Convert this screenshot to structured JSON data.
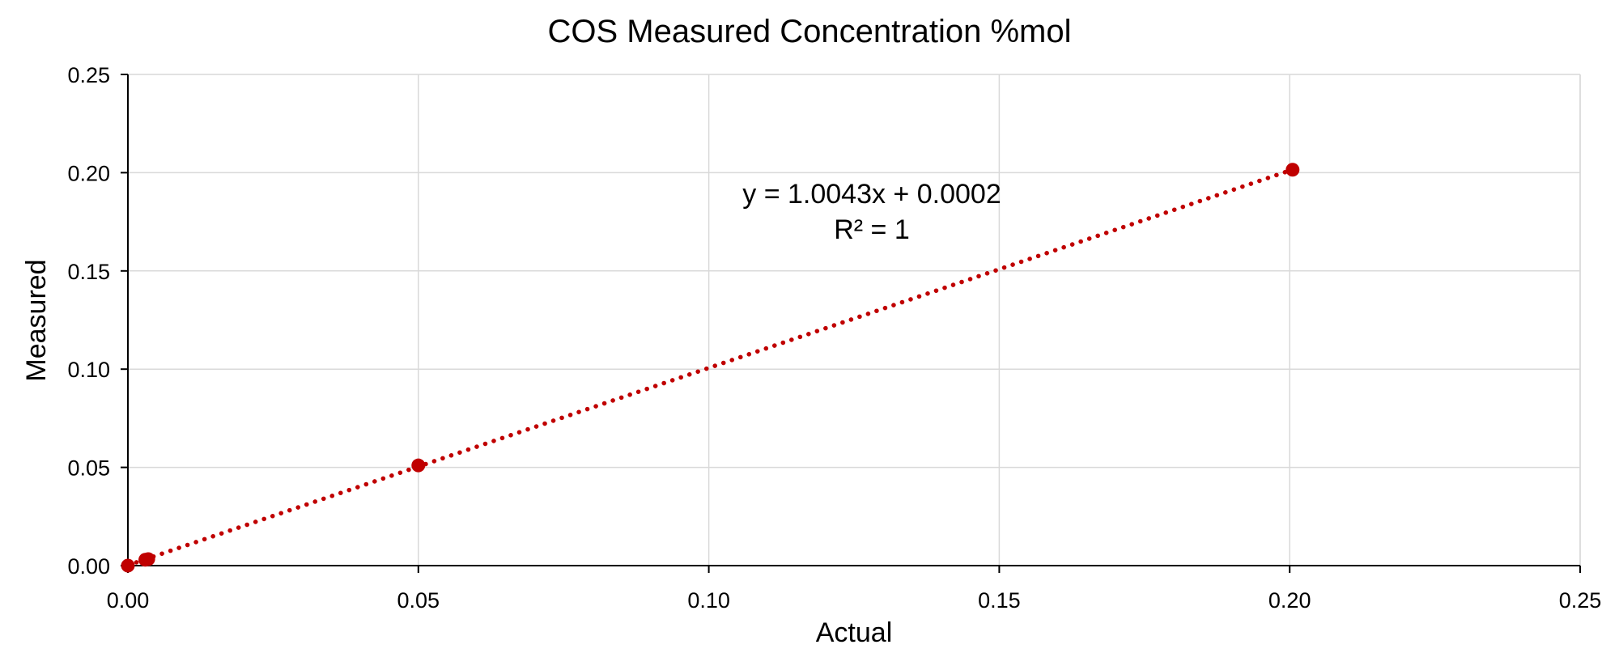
{
  "chart_data": {
    "type": "scatter",
    "title": "COS Measured Concentration %mol",
    "xlabel": "Actual",
    "ylabel": "Measured",
    "xlim": [
      0,
      0.25
    ],
    "ylim": [
      0,
      0.25
    ],
    "x_ticks": [
      "0.00",
      "0.05",
      "0.10",
      "0.15",
      "0.20",
      "0.25"
    ],
    "y_ticks": [
      "0.00",
      "0.05",
      "0.10",
      "0.15",
      "0.20",
      "0.25"
    ],
    "grid": true,
    "series": [
      {
        "points": [
          {
            "x": 0.0,
            "y": 0.0
          },
          {
            "x": 0.003,
            "y": 0.003
          },
          {
            "x": 0.0035,
            "y": 0.0033
          },
          {
            "x": 0.05,
            "y": 0.051
          },
          {
            "x": 0.2005,
            "y": 0.2015
          }
        ],
        "color": "#c00000"
      }
    ],
    "trendline": {
      "type": "linear",
      "slope": 1.0043,
      "intercept": 0.0002,
      "equation": "y = 1.0043x + 0.0002",
      "r_squared": "R² = 1",
      "color": "#c00000",
      "style": "dotted"
    }
  }
}
